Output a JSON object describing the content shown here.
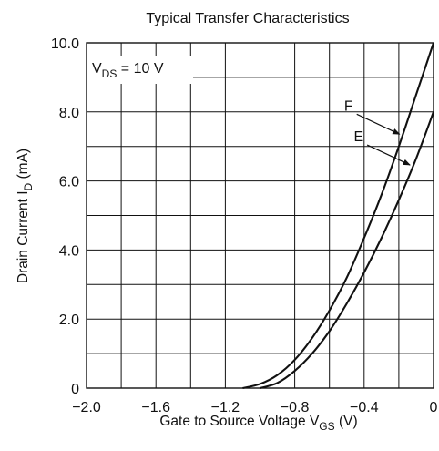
{
  "chart_data": {
    "type": "line",
    "title": "Typical Transfer Characteristics",
    "xlabel": {
      "main": "Gate to Source Voltage  V",
      "sub": "GS",
      "unit": "  (V)"
    },
    "ylabel": {
      "main": "Drain Current  I",
      "sub": "D",
      "unit": "  (mA)"
    },
    "xlim": [
      -2.0,
      0
    ],
    "ylim": [
      0,
      10.0
    ],
    "grid": true,
    "x_tick_labels": [
      "−2.0",
      "−1.6",
      "−1.2",
      "−0.8",
      "−0.4",
      "0"
    ],
    "x_tick_values": [
      -2.0,
      -1.6,
      -1.2,
      -0.8,
      -0.4,
      0
    ],
    "y_tick_labels": [
      "0",
      "2.0",
      "4.0",
      "6.0",
      "8.0",
      "10.0"
    ],
    "y_tick_values": [
      0,
      2,
      4,
      6,
      8,
      10
    ],
    "condition": {
      "main": "V",
      "sub": "DS",
      "rest": " = 10 V"
    },
    "series": [
      {
        "name": "F",
        "x": [
          -1.1,
          -1.0,
          -0.9,
          -0.8,
          -0.7,
          -0.6,
          -0.5,
          -0.4,
          -0.3,
          -0.2,
          -0.1,
          0.0
        ],
        "y": [
          0.0,
          0.12,
          0.38,
          0.82,
          1.45,
          2.25,
          3.2,
          4.35,
          5.6,
          7.0,
          8.5,
          10.0
        ]
      },
      {
        "name": "E",
        "x": [
          -1.0,
          -0.9,
          -0.8,
          -0.7,
          -0.6,
          -0.5,
          -0.4,
          -0.3,
          -0.2,
          -0.1,
          0.0
        ],
        "y": [
          0.0,
          0.15,
          0.5,
          1.0,
          1.65,
          2.45,
          3.35,
          4.35,
          5.45,
          6.65,
          8.0
        ]
      }
    ],
    "annotations": [
      {
        "text": "F",
        "series": "F",
        "point_x": -0.18
      },
      {
        "text": "E",
        "series": "E",
        "point_x": -0.12
      }
    ]
  }
}
